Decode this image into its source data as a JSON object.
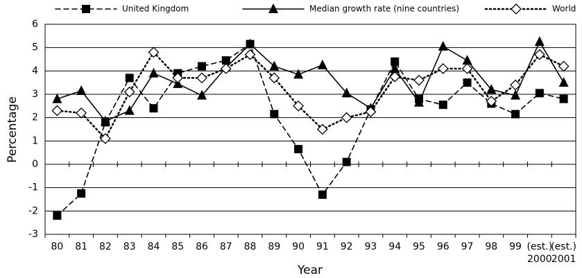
{
  "chart_data": {
    "type": "line",
    "x_label": "Year",
    "y_label": "Percentage",
    "categories": [
      "80",
      "81",
      "82",
      "83",
      "84",
      "85",
      "86",
      "87",
      "88",
      "89",
      "90",
      "91",
      "92",
      "93",
      "94",
      "95",
      "96",
      "97",
      "98",
      "99",
      "(est.) 2000",
      "(est.) 2001"
    ],
    "series": [
      {
        "name": "United Kingdom",
        "color": "#000000",
        "dash": "dashed",
        "marker": "square",
        "values": [
          -2.2,
          -1.25,
          1.8,
          3.7,
          2.4,
          3.9,
          4.2,
          4.45,
          5.15,
          2.15,
          0.65,
          -1.3,
          0.1,
          2.35,
          4.4,
          2.8,
          2.55,
          3.5,
          2.6,
          2.15,
          3.05,
          2.8
        ]
      },
      {
        "name": "Median growth rate (nine countries)",
        "color": "#000000",
        "dash": "solid",
        "marker": "triangle",
        "values": [
          2.8,
          3.15,
          1.85,
          2.3,
          3.9,
          3.45,
          2.95,
          4.15,
          5.15,
          4.2,
          3.85,
          4.25,
          3.05,
          2.4,
          4.1,
          2.65,
          5.05,
          4.45,
          3.2,
          2.95,
          5.25,
          3.5
        ]
      },
      {
        "name": "World",
        "color": "#000000",
        "dash": "dotted",
        "marker": "diamond",
        "values": [
          2.3,
          2.2,
          1.1,
          3.1,
          4.8,
          3.7,
          3.7,
          4.1,
          4.7,
          3.7,
          2.5,
          1.5,
          2.0,
          2.25,
          3.75,
          3.6,
          4.1,
          4.1,
          2.7,
          3.4,
          4.7,
          4.2
        ]
      }
    ],
    "ylim": [
      -3,
      6
    ],
    "yticks": [
      -3,
      -2,
      -1,
      0,
      1,
      2,
      3,
      4,
      5,
      6
    ],
    "grid": true,
    "legend": "top"
  }
}
